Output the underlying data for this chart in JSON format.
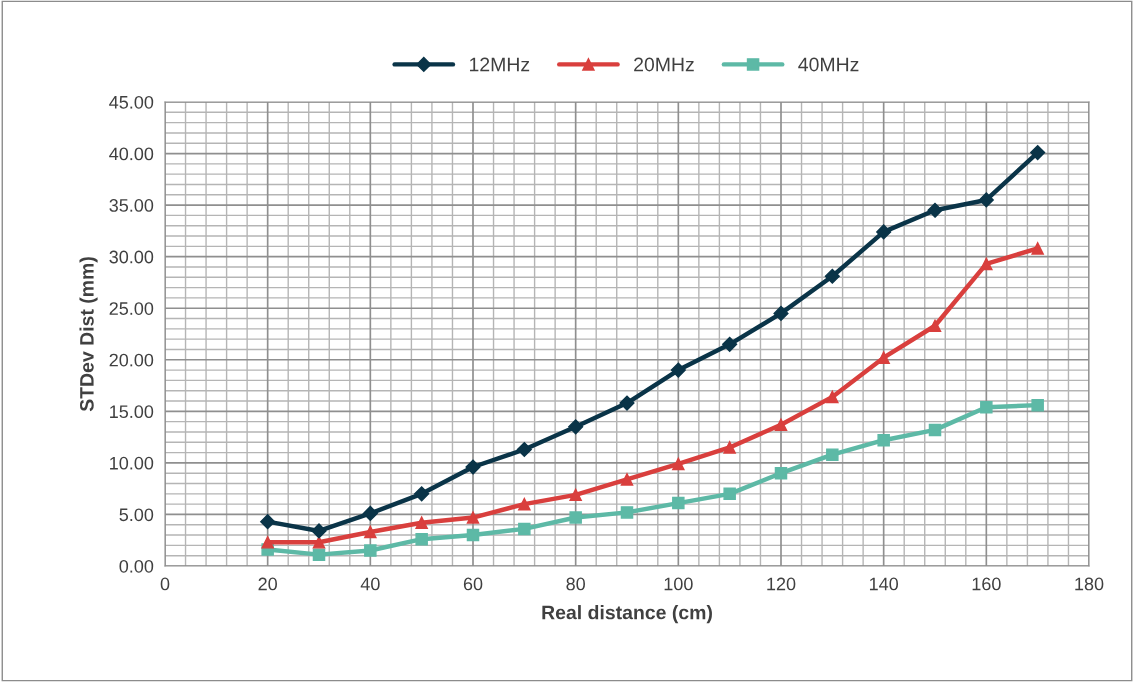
{
  "chart_data": {
    "type": "line",
    "xlabel": "Real distance (cm)",
    "ylabel": "STDev Dist (mm)",
    "x": [
      20,
      30,
      40,
      50,
      60,
      70,
      80,
      90,
      100,
      110,
      120,
      130,
      140,
      150,
      160,
      170
    ],
    "series": [
      {
        "name": "12MHz",
        "color": "#0a3448",
        "marker": "diamond",
        "values": [
          4.3,
          3.4,
          5.1,
          7.0,
          9.6,
          11.3,
          13.5,
          15.8,
          19.0,
          21.5,
          24.5,
          28.1,
          32.4,
          34.5,
          35.5,
          40.1
        ]
      },
      {
        "name": "20MHz",
        "color": "#d93f3d",
        "marker": "triangle",
        "values": [
          2.3,
          2.3,
          3.3,
          4.2,
          4.7,
          6.0,
          6.9,
          8.4,
          9.9,
          11.5,
          13.7,
          16.4,
          20.2,
          23.3,
          29.3,
          30.8
        ]
      },
      {
        "name": "40MHz",
        "color": "#5db9a6",
        "marker": "square",
        "values": [
          1.6,
          1.1,
          1.5,
          2.6,
          3.0,
          3.6,
          4.7,
          5.2,
          6.1,
          7.0,
          9.0,
          10.8,
          12.2,
          13.2,
          15.4,
          15.6
        ]
      }
    ],
    "xlim": [
      0,
      180
    ],
    "xticks": [
      0,
      20,
      40,
      60,
      80,
      100,
      120,
      140,
      160,
      180
    ],
    "ylim": [
      0,
      45
    ],
    "yticks": [
      {
        "value": 0,
        "label": "0.00"
      },
      {
        "value": 5,
        "label": "5.00"
      },
      {
        "value": 10,
        "label": "10.00"
      },
      {
        "value": 15,
        "label": "15.00"
      },
      {
        "value": 20,
        "label": "20.00"
      },
      {
        "value": 25,
        "label": "25.00"
      },
      {
        "value": 30,
        "label": "30.00"
      },
      {
        "value": 35,
        "label": "35.00"
      },
      {
        "value": 40,
        "label": "40.00"
      },
      {
        "value": 45,
        "label": "45.00"
      }
    ],
    "grid": true,
    "legend": "top",
    "line_style": "solid"
  }
}
